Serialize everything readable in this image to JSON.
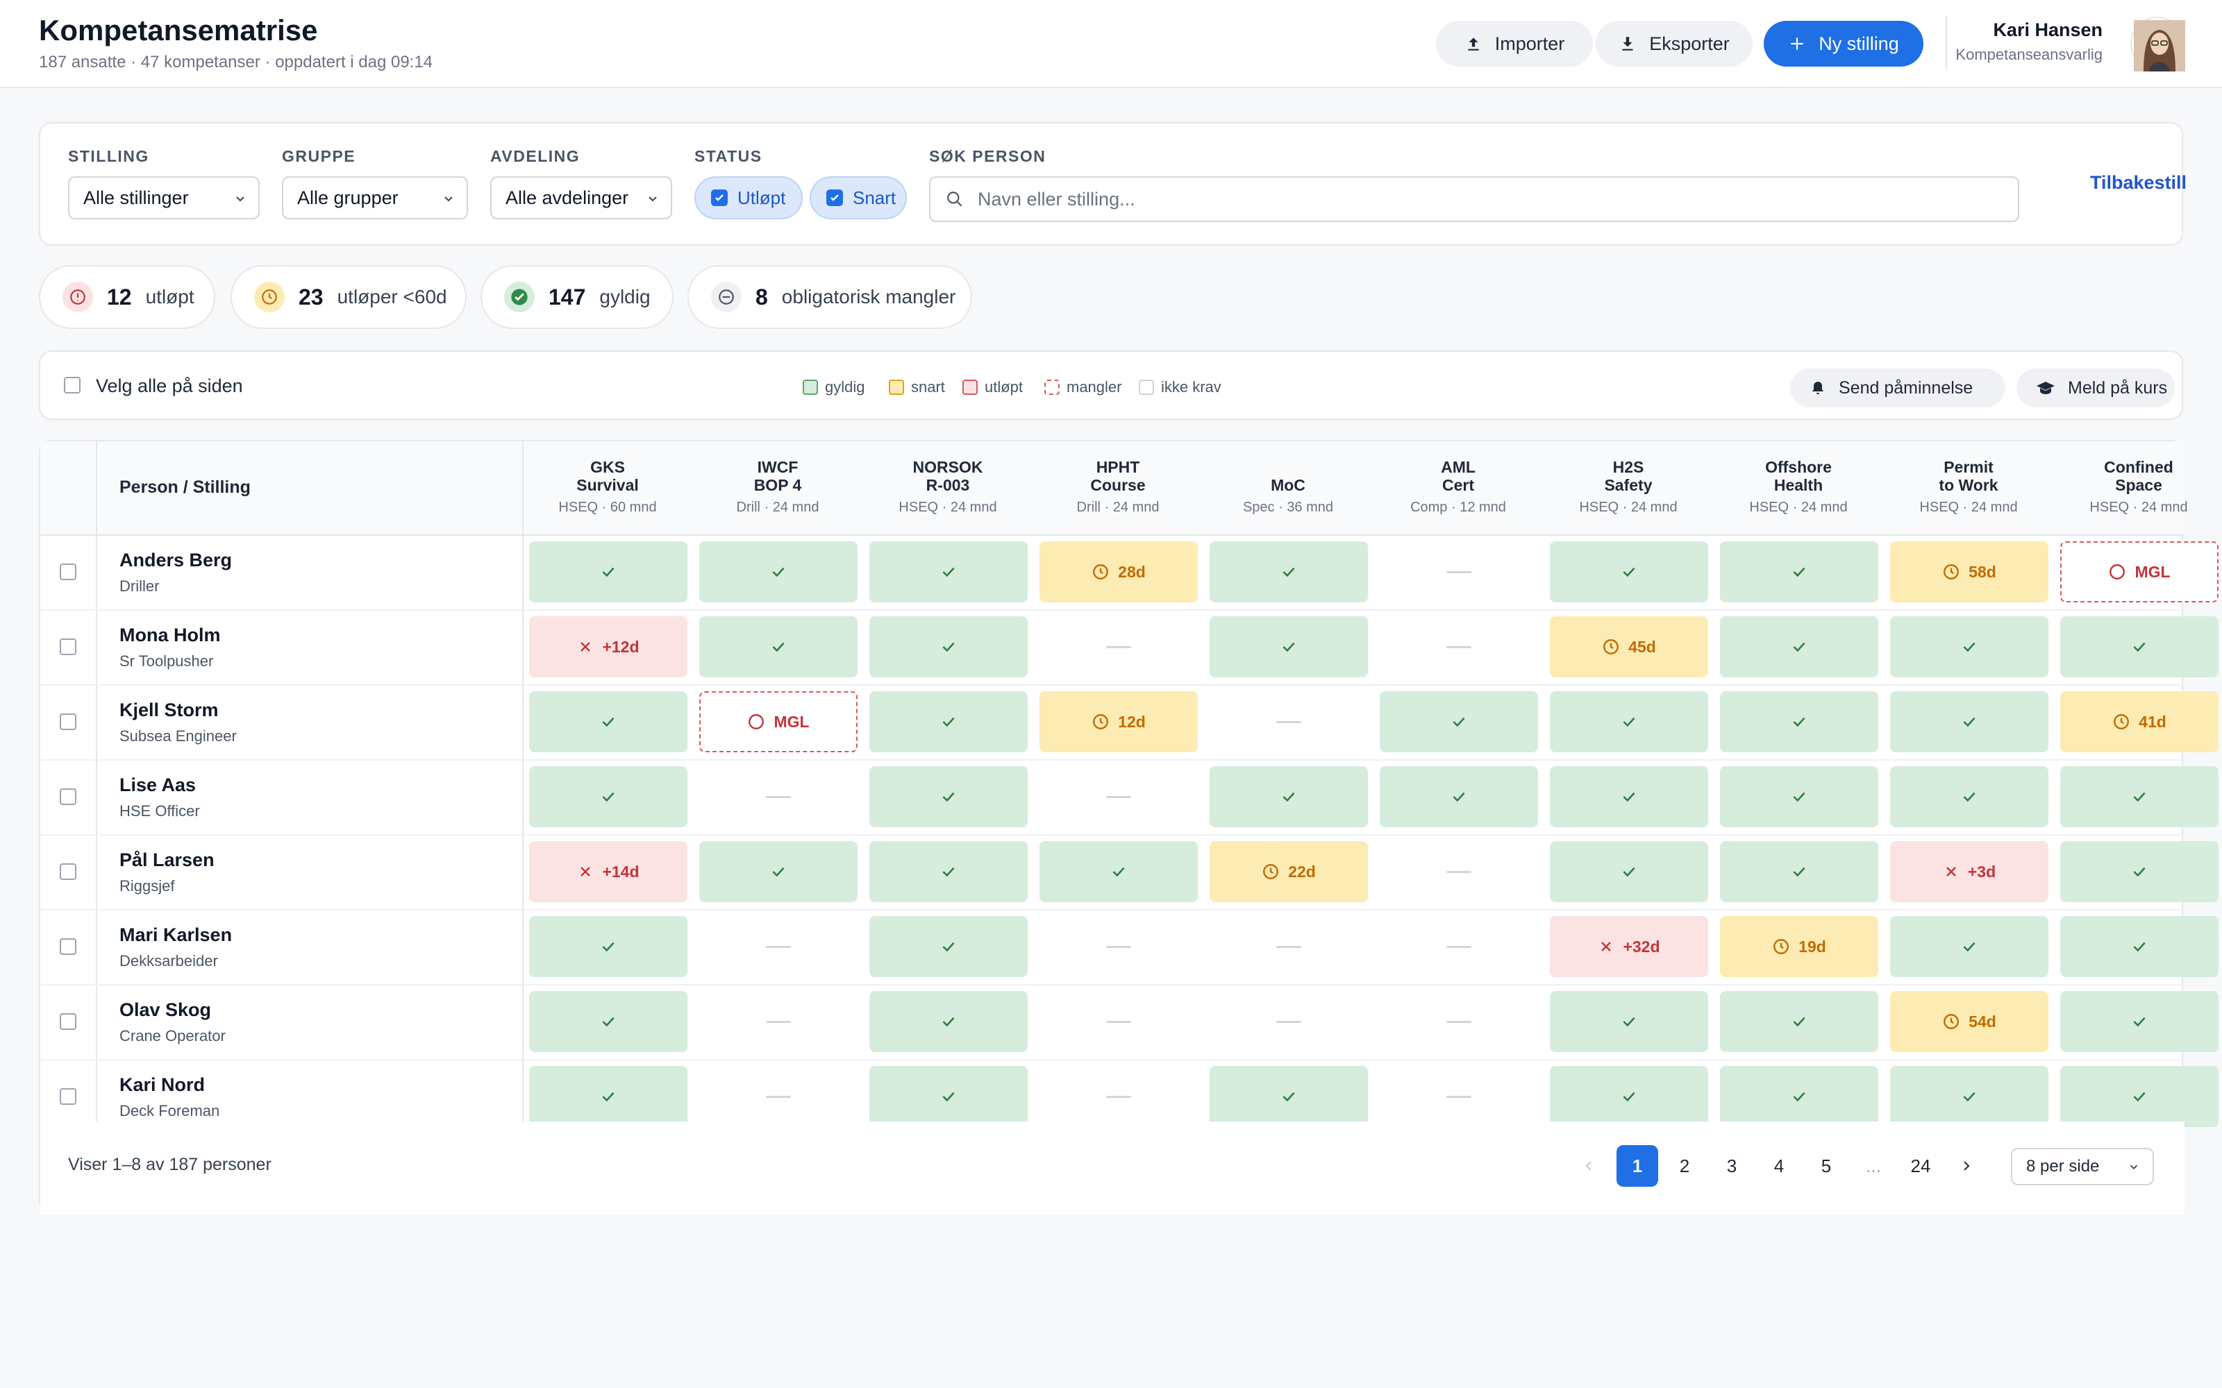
{
  "header": {
    "title": "Kompetansematrise",
    "subtitle": "187 ansatte · 47 kompetanser · oppdatert i dag 09:14",
    "import_label": "Importer",
    "export_label": "Eksporter",
    "new_label": "Ny stilling",
    "user_name": "Kari Hansen",
    "user_role": "Kompetanseansvarlig"
  },
  "filters": {
    "stilling_label": "STILLING",
    "stilling_value": "Alle stillinger",
    "gruppe_label": "GRUPPE",
    "gruppe_value": "Alle grupper",
    "avdeling_label": "AVDELING",
    "avdeling_value": "Alle avdelinger",
    "status_label": "STATUS",
    "status_chips": [
      "Utløpt",
      "Snart"
    ],
    "search_label": "SØK PERSON",
    "search_placeholder": "Navn eller stilling...",
    "reset_label": "Tilbakestill"
  },
  "summary": [
    {
      "count": "12",
      "label": "utløpt",
      "kind": "exp"
    },
    {
      "count": "23",
      "label": "utløper <60d",
      "kind": "soon"
    },
    {
      "count": "147",
      "label": "gyldig",
      "kind": "ok"
    },
    {
      "count": "8",
      "label": "obligatorisk mangler",
      "kind": "miss"
    }
  ],
  "toolbar": {
    "select_all_label": "Velg alle på siden",
    "legend": [
      {
        "label": "gyldig",
        "color": "#5aa66b"
      },
      {
        "label": "snart",
        "color": "#e0a21b"
      },
      {
        "label": "utløpt",
        "color": "#d65a5a"
      },
      {
        "label": "mangler",
        "color": "#d65a5a"
      },
      {
        "label": "ikke krav",
        "color": "#cfd3d9"
      }
    ],
    "remind_label": "Send påminnelse",
    "enroll_label": "Meld på kurs"
  },
  "table": {
    "person_header": "Person / Stilling",
    "columns": [
      {
        "l1": "GKS",
        "l2": "Survival",
        "meta": "HSEQ · 60 mnd"
      },
      {
        "l1": "IWCF",
        "l2": "BOP 4",
        "meta": "Drill · 24 mnd"
      },
      {
        "l1": "NORSOK",
        "l2": "R-003",
        "meta": "HSEQ · 24 mnd"
      },
      {
        "l1": "HPHT",
        "l2": "Course",
        "meta": "Drill · 24 mnd"
      },
      {
        "l1": "MoC",
        "l2": "",
        "meta": "Spec · 36 mnd"
      },
      {
        "l1": "AML",
        "l2": "Cert",
        "meta": "Comp · 12 mnd"
      },
      {
        "l1": "H2S",
        "l2": "Safety",
        "meta": "HSEQ · 24 mnd"
      },
      {
        "l1": "Offshore",
        "l2": "Health",
        "meta": "HSEQ · 24 mnd"
      },
      {
        "l1": "Permit",
        "l2": "to Work",
        "meta": "HSEQ · 24 mnd"
      },
      {
        "l1": "Confined",
        "l2": "Space",
        "meta": "HSEQ · 24 mnd"
      }
    ],
    "rows": [
      {
        "name": "Anders Berg",
        "job": "Driller",
        "cells": [
          [
            "ok",
            ""
          ],
          [
            "ok",
            ""
          ],
          [
            "ok",
            ""
          ],
          [
            "soon",
            "28d"
          ],
          [
            "ok",
            ""
          ],
          [
            "none",
            ""
          ],
          [
            "ok",
            ""
          ],
          [
            "ok",
            ""
          ],
          [
            "soon",
            "58d"
          ],
          [
            "miss",
            "MGL"
          ]
        ]
      },
      {
        "name": "Mona Holm",
        "job": "Sr Toolpusher",
        "cells": [
          [
            "exp",
            "+12d"
          ],
          [
            "ok",
            ""
          ],
          [
            "ok",
            ""
          ],
          [
            "none",
            ""
          ],
          [
            "ok",
            ""
          ],
          [
            "none",
            ""
          ],
          [
            "soon",
            "45d"
          ],
          [
            "ok",
            ""
          ],
          [
            "ok",
            ""
          ],
          [
            "ok",
            ""
          ]
        ]
      },
      {
        "name": "Kjell Storm",
        "job": "Subsea Engineer",
        "cells": [
          [
            "ok",
            ""
          ],
          [
            "miss",
            "MGL"
          ],
          [
            "ok",
            ""
          ],
          [
            "soon",
            "12d"
          ],
          [
            "none",
            ""
          ],
          [
            "ok",
            ""
          ],
          [
            "ok",
            ""
          ],
          [
            "ok",
            ""
          ],
          [
            "ok",
            ""
          ],
          [
            "soon",
            "41d"
          ]
        ]
      },
      {
        "name": "Lise Aas",
        "job": "HSE Officer",
        "cells": [
          [
            "ok",
            ""
          ],
          [
            "none",
            ""
          ],
          [
            "ok",
            ""
          ],
          [
            "none",
            ""
          ],
          [
            "ok",
            ""
          ],
          [
            "ok",
            ""
          ],
          [
            "ok",
            ""
          ],
          [
            "ok",
            ""
          ],
          [
            "ok",
            ""
          ],
          [
            "ok",
            ""
          ]
        ]
      },
      {
        "name": "Pål Larsen",
        "job": "Riggsjef",
        "cells": [
          [
            "exp",
            "+14d"
          ],
          [
            "ok",
            ""
          ],
          [
            "ok",
            ""
          ],
          [
            "ok",
            ""
          ],
          [
            "soon",
            "22d"
          ],
          [
            "none",
            ""
          ],
          [
            "ok",
            ""
          ],
          [
            "ok",
            ""
          ],
          [
            "exp",
            "+3d"
          ],
          [
            "ok",
            ""
          ]
        ]
      },
      {
        "name": "Mari Karlsen",
        "job": "Dekksarbeider",
        "cells": [
          [
            "ok",
            ""
          ],
          [
            "none",
            ""
          ],
          [
            "ok",
            ""
          ],
          [
            "none",
            ""
          ],
          [
            "none",
            ""
          ],
          [
            "none",
            ""
          ],
          [
            "exp",
            "+32d"
          ],
          [
            "soon",
            "19d"
          ],
          [
            "ok",
            ""
          ],
          [
            "ok",
            ""
          ]
        ]
      },
      {
        "name": "Olav Skog",
        "job": "Crane Operator",
        "cells": [
          [
            "ok",
            ""
          ],
          [
            "none",
            ""
          ],
          [
            "ok",
            ""
          ],
          [
            "none",
            ""
          ],
          [
            "none",
            ""
          ],
          [
            "none",
            ""
          ],
          [
            "ok",
            ""
          ],
          [
            "ok",
            ""
          ],
          [
            "soon",
            "54d"
          ],
          [
            "ok",
            ""
          ]
        ]
      },
      {
        "name": "Kari Nord",
        "job": "Deck Foreman",
        "cells": [
          [
            "ok",
            ""
          ],
          [
            "none",
            ""
          ],
          [
            "ok",
            ""
          ],
          [
            "none",
            ""
          ],
          [
            "ok",
            ""
          ],
          [
            "none",
            ""
          ],
          [
            "ok",
            ""
          ],
          [
            "ok",
            ""
          ],
          [
            "ok",
            ""
          ],
          [
            "ok",
            ""
          ]
        ]
      }
    ]
  },
  "footer": {
    "count_text": "Viser 1–8 av 187 personer",
    "pages": [
      "1",
      "2",
      "3",
      "4",
      "5",
      "...",
      "24"
    ],
    "per_page": "8 per side"
  }
}
